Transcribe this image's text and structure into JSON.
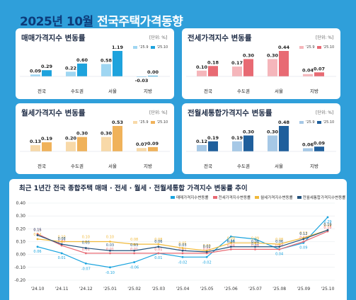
{
  "header": {
    "year": "2025년",
    "month": "10월",
    "rest": "전국주택가격동향"
  },
  "chart_data": [
    {
      "type": "bar",
      "title": "매매가격지수 변동률",
      "unit": "[단위: %]",
      "categories": [
        "전국",
        "수도권",
        "서울",
        "지방"
      ],
      "series": [
        {
          "name": "'25.9",
          "values": [
            0.09,
            0.22,
            0.58,
            -0.03
          ],
          "color": "#9fd6f2"
        },
        {
          "name": "'25.10",
          "values": [
            0.29,
            0.6,
            1.19,
            0.0
          ],
          "color": "#1ea3dd"
        }
      ]
    },
    {
      "type": "bar",
      "title": "전세가격지수 변동률",
      "unit": "[단위: %]",
      "categories": [
        "전국",
        "수도권",
        "서울",
        "지방"
      ],
      "series": [
        {
          "name": "'25.9",
          "values": [
            0.1,
            0.17,
            0.3,
            0.04
          ],
          "color": "#f5b6bb"
        },
        {
          "name": "'25.10",
          "values": [
            0.18,
            0.3,
            0.44,
            0.07
          ],
          "color": "#e86a73"
        }
      ]
    },
    {
      "type": "bar",
      "title": "월세가격지수 변동률",
      "unit": "[단위: %]",
      "categories": [
        "전국",
        "수도권",
        "서울",
        "지방"
      ],
      "series": [
        {
          "name": "'25.9",
          "values": [
            0.13,
            0.2,
            0.3,
            0.07
          ],
          "color": "#f8d9a8"
        },
        {
          "name": "'25.10",
          "values": [
            0.19,
            0.3,
            0.53,
            0.09
          ],
          "color": "#f0b25a"
        }
      ]
    },
    {
      "type": "bar",
      "title": "전월세통합가격지수 변동률",
      "unit": "[단위: %]",
      "categories": [
        "전국",
        "수도권",
        "서울",
        "지방"
      ],
      "series": [
        {
          "name": "'25.9",
          "values": [
            0.12,
            0.19,
            0.3,
            0.06
          ],
          "color": "#a6c8e6"
        },
        {
          "name": "'25.10",
          "values": [
            0.19,
            0.3,
            0.48,
            0.09
          ],
          "color": "#1f5f9c"
        }
      ]
    },
    {
      "type": "line",
      "title": "최근 1년간 전국 종합주택 매매 · 전세 · 월세 · 전월세통합 가격지수 변동률 추이",
      "x": [
        "'24.10",
        "'24.11",
        "'24.12",
        "'25.01",
        "'25.02",
        "'25.03",
        "'25.04",
        "'25.05",
        "'25.06",
        "'25.07",
        "'25.08",
        "'25.09",
        "'25.10"
      ],
      "ylim": [
        -0.2,
        0.4
      ],
      "yticks": [
        "0.40",
        "0.30",
        "0.20",
        "0.10",
        "0.00",
        "-0.10",
        "-0.20"
      ],
      "series": [
        {
          "name": "매매가격지수변동률",
          "color": "#19a3de",
          "values": [
            0.06,
            0.01,
            -0.07,
            -0.1,
            -0.06,
            0.01,
            -0.02,
            -0.02,
            0.14,
            0.12,
            0.04,
            0.09,
            0.29
          ]
        },
        {
          "name": "전세가격지수변동률",
          "color": "#e86a73",
          "values": [
            0.16,
            0.07,
            0.01,
            0.01,
            0.01,
            0.01,
            0.01,
            0.01,
            0.04,
            0.04,
            0.04,
            0.1,
            0.18
          ]
        },
        {
          "name": "월세가격지수변동률",
          "color": "#f0b93a",
          "values": [
            0.12,
            0.1,
            0.1,
            0.1,
            0.08,
            0.08,
            0.05,
            0.03,
            0.09,
            0.09,
            0.08,
            0.13,
            0.19
          ]
        },
        {
          "name": "전월세통합가격지수변동률",
          "color": "#23527c",
          "values": [
            0.15,
            0.08,
            0.05,
            0.03,
            0.03,
            0.06,
            0.03,
            0.02,
            0.06,
            0.06,
            0.06,
            0.12,
            0.19
          ]
        }
      ]
    }
  ]
}
